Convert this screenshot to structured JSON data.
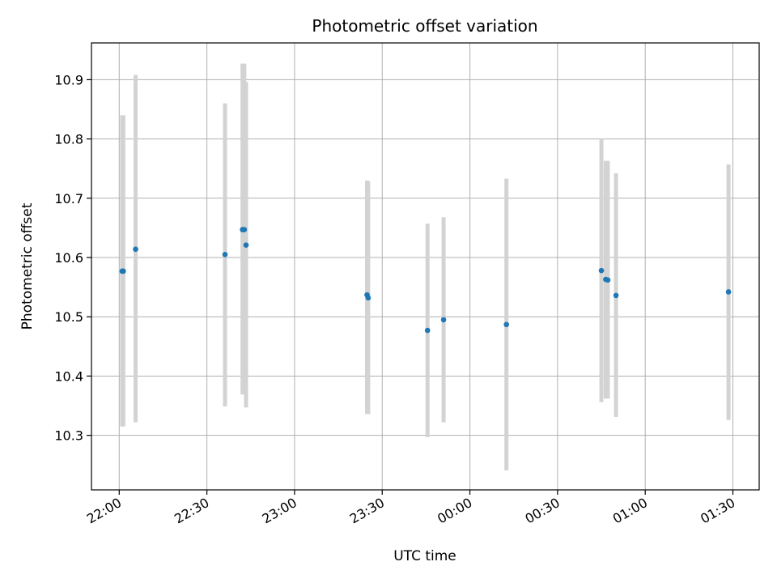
{
  "chart_data": {
    "type": "scatter",
    "title": "Photometric offset variation",
    "xlabel": "UTC time",
    "ylabel": "Photometric offset",
    "xlim": [
      -9.5,
      219
    ],
    "ylim": [
      10.208,
      10.962
    ],
    "grid": true,
    "x_ticks": [
      {
        "value": 0,
        "label": "22:00"
      },
      {
        "value": 30,
        "label": "22:30"
      },
      {
        "value": 60,
        "label": "23:00"
      },
      {
        "value": 90,
        "label": "23:30"
      },
      {
        "value": 120,
        "label": "00:00"
      },
      {
        "value": 150,
        "label": "00:30"
      },
      {
        "value": 180,
        "label": "01:00"
      },
      {
        "value": 210,
        "label": "01:30"
      }
    ],
    "y_ticks": [
      {
        "value": 10.3,
        "label": "10.3"
      },
      {
        "value": 10.4,
        "label": "10.4"
      },
      {
        "value": 10.5,
        "label": "10.5"
      },
      {
        "value": 10.6,
        "label": "10.6"
      },
      {
        "value": 10.7,
        "label": "10.7"
      },
      {
        "value": 10.8,
        "label": "10.8"
      },
      {
        "value": 10.9,
        "label": "10.9"
      }
    ],
    "x_units": "minutes after 22:00 UTC",
    "point_color": "#1f77b4",
    "errorbar_color": "#d3d3d3",
    "points": [
      {
        "x": 1.0,
        "y": 10.577,
        "ylow": 10.315,
        "yhigh": 10.84
      },
      {
        "x": 1.4,
        "y": 10.577,
        "ylow": 10.315,
        "yhigh": 10.84
      },
      {
        "x": 5.6,
        "y": 10.614,
        "ylow": 10.322,
        "yhigh": 10.908
      },
      {
        "x": 36.2,
        "y": 10.605,
        "ylow": 10.349,
        "yhigh": 10.86
      },
      {
        "x": 42.2,
        "y": 10.647,
        "ylow": 10.369,
        "yhigh": 10.927
      },
      {
        "x": 42.8,
        "y": 10.647,
        "ylow": 10.369,
        "yhigh": 10.927
      },
      {
        "x": 43.4,
        "y": 10.621,
        "ylow": 10.347,
        "yhigh": 10.896
      },
      {
        "x": 84.8,
        "y": 10.537,
        "ylow": 10.336,
        "yhigh": 10.73
      },
      {
        "x": 85.2,
        "y": 10.532,
        "ylow": 10.336,
        "yhigh": 10.728
      },
      {
        "x": 105.5,
        "y": 10.477,
        "ylow": 10.297,
        "yhigh": 10.657
      },
      {
        "x": 111.0,
        "y": 10.495,
        "ylow": 10.322,
        "yhigh": 10.668
      },
      {
        "x": 132.5,
        "y": 10.487,
        "ylow": 10.241,
        "yhigh": 10.733
      },
      {
        "x": 165.0,
        "y": 10.578,
        "ylow": 10.356,
        "yhigh": 10.8
      },
      {
        "x": 166.5,
        "y": 10.563,
        "ylow": 10.362,
        "yhigh": 10.763
      },
      {
        "x": 167.2,
        "y": 10.562,
        "ylow": 10.362,
        "yhigh": 10.763
      },
      {
        "x": 170.0,
        "y": 10.536,
        "ylow": 10.331,
        "yhigh": 10.742
      },
      {
        "x": 208.5,
        "y": 10.542,
        "ylow": 10.326,
        "yhigh": 10.757
      }
    ]
  }
}
